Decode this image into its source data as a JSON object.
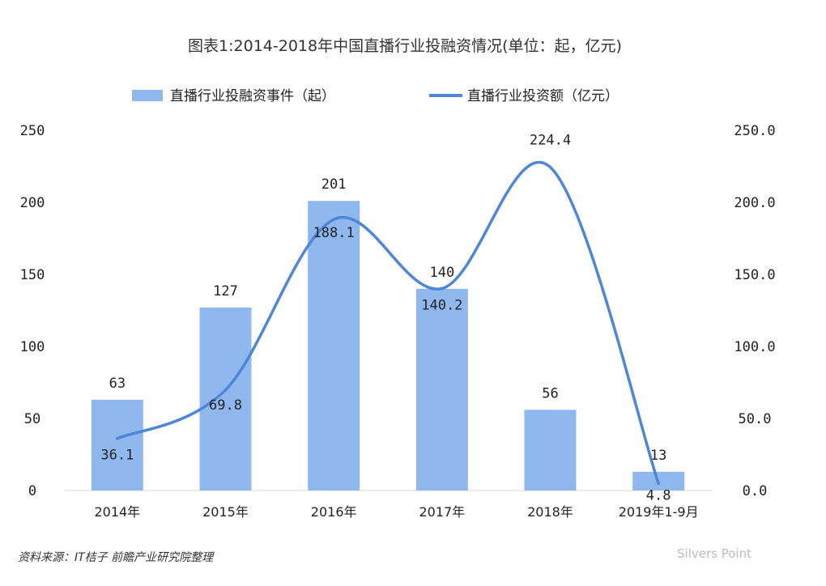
{
  "chart_data": {
    "type": "bar",
    "title": "图表1:2014-2018年中国直播行业投融资情况(单位：起，亿元)",
    "categories": [
      "2014年",
      "2015年",
      "2016年",
      "2017年",
      "2018年",
      "2019年1-9月"
    ],
    "series": [
      {
        "name": "直播行业投融资事件（起）",
        "type": "bar",
        "axis": "left",
        "color": "#8fb8ee",
        "values": [
          63,
          127,
          201,
          140,
          56,
          13
        ],
        "labels": [
          "63",
          "127",
          "201",
          "140",
          "56",
          "13"
        ]
      },
      {
        "name": "直播行业投资额（亿元）",
        "type": "line",
        "axis": "right",
        "color": "#4f86d9",
        "values": [
          36.1,
          69.8,
          188.1,
          140.2,
          224.4,
          4.8
        ],
        "labels": [
          "36.1",
          "69.8",
          "188.1",
          "140.2",
          "224.4",
          "4.8"
        ]
      }
    ],
    "y_left": {
      "ylim": [
        0,
        250
      ],
      "ticks": [
        "0",
        "50",
        "100",
        "150",
        "200",
        "250"
      ]
    },
    "y_right": {
      "ylim": [
        0,
        250
      ],
      "ticks": [
        "0.0",
        "50.0",
        "100.0",
        "150.0",
        "200.0",
        "250.0"
      ]
    },
    "legend_position": "top",
    "grid": false
  },
  "source": "资料来源：IT桔子 前瞻产业研究院整理",
  "watermark": {
    "brand": "前瞻产业研究院",
    "corner_text": "Silvers Point"
  }
}
